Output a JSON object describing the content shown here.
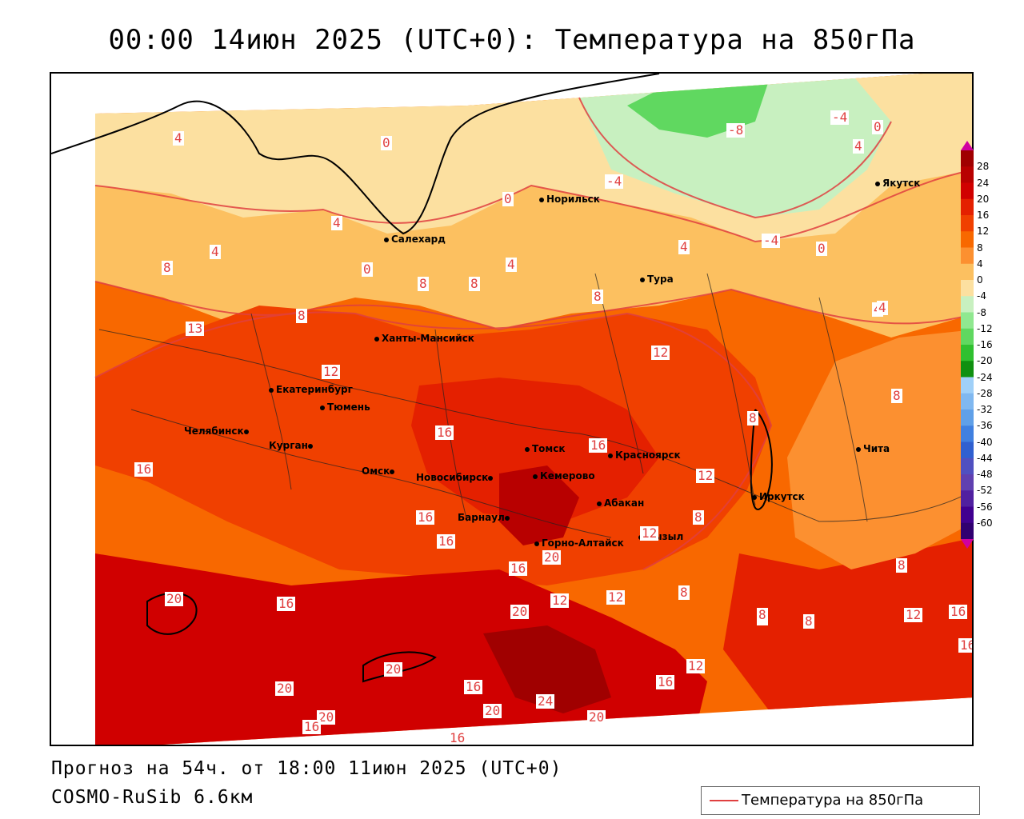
{
  "title": "00:00 14июн 2025 (UTC+0): Температура на 850гПа",
  "footer": {
    "forecast": "Прогноз на 54ч. от 18:00 11июн 2025 (UTC+0)",
    "model": "COSMO-RuSib 6.6км"
  },
  "legend": {
    "label": "Температура на 850гПа",
    "line_color": "#e04040"
  },
  "colorbar": {
    "ticks": [
      "28",
      "24",
      "20",
      "16",
      "12",
      "8",
      "4",
      "0",
      "-4",
      "-8",
      "-12",
      "-16",
      "-20",
      "-24",
      "-28",
      "-32",
      "-36",
      "-40",
      "-44",
      "-48",
      "-52",
      "-56",
      "-60"
    ],
    "colors": [
      "#a00000",
      "#b80000",
      "#d00000",
      "#e42000",
      "#f04000",
      "#f86800",
      "#fc9030",
      "#fcc060",
      "#fce0a0",
      "#c8f0c0",
      "#90e890",
      "#60d860",
      "#30c030",
      "#109010",
      "#a0d0f8",
      "#80b8f0",
      "#60a0e8",
      "#4080e0",
      "#3060d0",
      "#5050c0",
      "#6040b0",
      "#5020a0",
      "#400090",
      "#300070"
    ]
  },
  "cities": [
    {
      "name": "Норильск"
    },
    {
      "name": "Якутск"
    },
    {
      "name": "Салехард"
    },
    {
      "name": "Тура"
    },
    {
      "name": "Ханты-Мансийск"
    },
    {
      "name": "Екатеринбург"
    },
    {
      "name": "Тюмень"
    },
    {
      "name": "Челябинск"
    },
    {
      "name": "Курган"
    },
    {
      "name": "Томск"
    },
    {
      "name": "Красноярск"
    },
    {
      "name": "Омск"
    },
    {
      "name": "Новосибирск"
    },
    {
      "name": "Кемерово"
    },
    {
      "name": "Абакан"
    },
    {
      "name": "Барнаул"
    },
    {
      "name": "Горно-Алтайск"
    },
    {
      "name": "Кызыл"
    },
    {
      "name": "Иркутск"
    },
    {
      "name": "Чита"
    }
  ],
  "contour_labels": [
    "4",
    "0",
    "-8",
    "-4",
    "0",
    "4",
    "-4",
    "4",
    "0",
    "-4",
    "0",
    "4",
    "0",
    "4",
    "8",
    "8",
    "8",
    "4",
    "8",
    "4",
    "13",
    "8",
    "12",
    "12",
    "16",
    "8",
    "8",
    "16",
    "16",
    "12",
    "16",
    "16",
    "20",
    "16",
    "12",
    "8",
    "20",
    "20",
    "12",
    "16",
    "12",
    "8",
    "8",
    "16",
    "20",
    "20",
    "12",
    "16",
    "20",
    "16",
    "20",
    "24",
    "20",
    "16",
    "8",
    "12",
    "16",
    "16",
    "8",
    "8",
    "4"
  ]
}
